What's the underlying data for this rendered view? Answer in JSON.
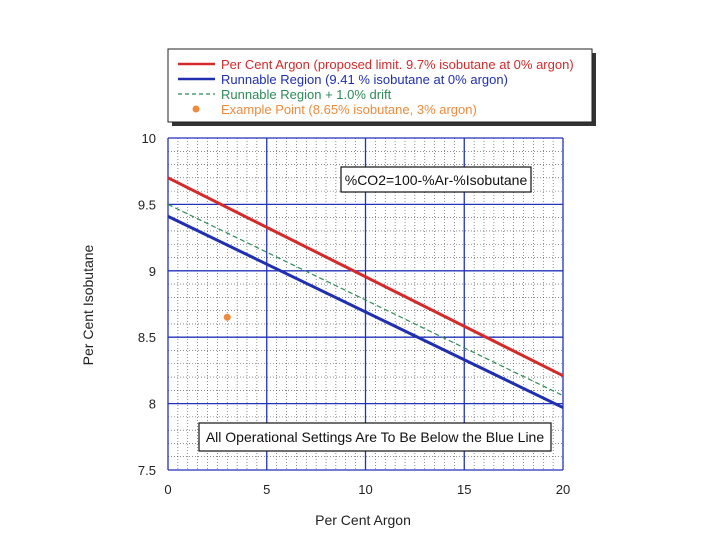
{
  "chart_data": {
    "type": "line",
    "xlabel": "Per Cent Argon",
    "ylabel": "Per Cent Isobutane",
    "xlim": [
      0,
      20
    ],
    "ylim": [
      7.5,
      10
    ],
    "x_ticks": [
      0,
      5,
      10,
      15,
      20
    ],
    "x_tick_labels": [
      "0",
      "5",
      "10",
      "15",
      "20"
    ],
    "y_ticks": [
      7.5,
      8,
      8.5,
      9,
      9.5,
      10
    ],
    "y_tick_labels": [
      "7.5",
      "8",
      "8.5",
      "9",
      "9.5",
      "10"
    ],
    "grid": true,
    "legend_position": "top",
    "series": [
      {
        "name": "Per Cent Argon (proposed limit. 9.7% isobutane at 0% argon)",
        "color": "#d42a2a",
        "style": "solid",
        "x": [
          0,
          20
        ],
        "y": [
          9.7,
          8.21
        ]
      },
      {
        "name": "Runnable Region  (9.41 % isobutane at 0% argon)",
        "color": "#1f2fb0",
        "style": "solid",
        "x": [
          0,
          20
        ],
        "y": [
          9.41,
          7.97
        ]
      },
      {
        "name": "Runnable Region + 1.0% drift",
        "color": "#2e8b57",
        "style": "dashed",
        "x": [
          0,
          20
        ],
        "y": [
          9.5,
          8.06
        ]
      }
    ],
    "points": [
      {
        "name": "Example Point (8.65% isobutane, 3% argon)",
        "color": "#f08a3c",
        "x": 3,
        "y": 8.65
      }
    ],
    "annotations": [
      "%CO2=100-%Ar-%Isobutane",
      "All Operational Settings Are To Be Below the Blue Line"
    ]
  }
}
